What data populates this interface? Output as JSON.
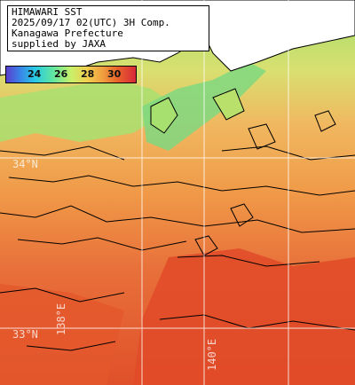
{
  "title": {
    "line1": "HIMAWARI SST",
    "line2": "2025/09/17 02(UTC) 3H Comp.",
    "line3": "Kanagawa Prefecture",
    "line4": "supplied by JAXA"
  },
  "legend": {
    "ticks": [
      "24",
      "26",
      "28",
      "30"
    ],
    "colors": [
      "#5a3fcf",
      "#28c8e6",
      "#c8f06a",
      "#f0a040",
      "#d8283a"
    ]
  },
  "grid": {
    "lat_labels": [
      "34°N",
      "33°N"
    ],
    "lon_labels": [
      "138°E",
      "140°E"
    ]
  },
  "colors": {
    "land": "#ffffff",
    "coastline": "#000000",
    "warm_sea": "#e0532a",
    "mid_sea": "#f0a040",
    "cool_sea": "#b8e06a"
  }
}
